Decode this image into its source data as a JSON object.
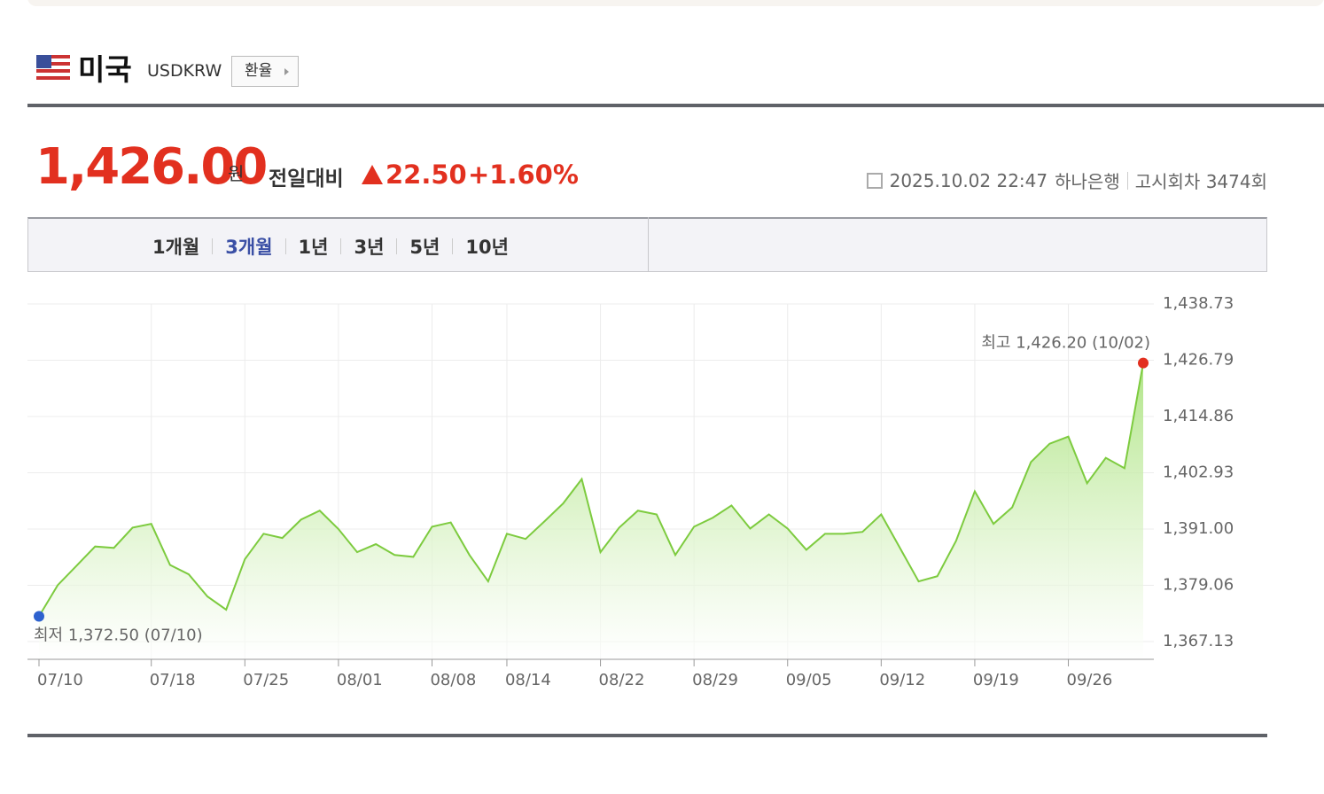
{
  "header": {
    "country": "미국",
    "code": "USDKRW",
    "button": "환율"
  },
  "quote": {
    "price": "1,426.00",
    "unit": "원",
    "change_label": "전일대비",
    "change": "22.50",
    "change_pct": "+1.60%",
    "datetime": "2025.10.02 22:47",
    "bank": "하나은행",
    "notice": "고시회차 3474회"
  },
  "tabs": [
    {
      "label": "1개월"
    },
    {
      "label": "3개월",
      "active": true
    },
    {
      "label": "1년"
    },
    {
      "label": "3년"
    },
    {
      "label": "5년"
    },
    {
      "label": "10년"
    }
  ],
  "chart_data": {
    "type": "area",
    "color": "#7dcb3f",
    "grid": true,
    "categories": [
      "07/10",
      null,
      null,
      null,
      null,
      null,
      "07/18",
      null,
      null,
      null,
      null,
      "07/25",
      null,
      null,
      null,
      null,
      "08/01",
      null,
      null,
      null,
      null,
      "08/08",
      null,
      null,
      null,
      "08/14",
      null,
      null,
      null,
      null,
      "08/22",
      null,
      null,
      null,
      null,
      "08/29",
      null,
      null,
      null,
      null,
      "09/05",
      null,
      null,
      null,
      null,
      "09/12",
      null,
      null,
      null,
      null,
      "09/19",
      null,
      null,
      null,
      null,
      "09/26",
      null,
      null,
      null,
      null
    ],
    "values": [
      1372.5,
      1379.1,
      1383.2,
      1387.3,
      1387.0,
      1391.3,
      1392.1,
      1383.4,
      1381.4,
      1376.7,
      1373.9,
      1384.6,
      1390.0,
      1389.1,
      1393.0,
      1394.9,
      1391.0,
      1386.1,
      1387.8,
      1385.5,
      1385.1,
      1391.5,
      1392.4,
      1385.5,
      1379.9,
      1390.0,
      1388.9,
      1392.6,
      1396.4,
      1401.6,
      1386.1,
      1391.3,
      1394.9,
      1394.1,
      1385.5,
      1391.5,
      1393.4,
      1396.0,
      1391.1,
      1394.1,
      1391.1,
      1386.6,
      1390.0,
      1390.0,
      1390.4,
      1394.1,
      1387.0,
      1379.9,
      1381.0,
      1388.5,
      1399.0,
      1392.1,
      1395.6,
      1405.2,
      1409.1,
      1410.6,
      1400.7,
      1406.1,
      1403.9,
      1426.2
    ],
    "ylim": [
      1363.38,
      1438.73
    ],
    "yticks": [
      {
        "value": 1367.13,
        "label": "1,367.13"
      },
      {
        "value": 1379.06,
        "label": "1,379.06"
      },
      {
        "value": 1391.0,
        "label": "1,391.00"
      },
      {
        "value": 1402.93,
        "label": "1,402.93"
      },
      {
        "value": 1414.86,
        "label": "1,414.86"
      },
      {
        "value": 1426.79,
        "label": "1,426.79"
      },
      {
        "value": 1438.73,
        "label": "1,438.73"
      }
    ],
    "max_label": "최고 1,426.20 (10/02)",
    "min_label": "최저 1,372.50 (07/10)",
    "max_color": "#e2301f",
    "min_color": "#2e62cf"
  }
}
